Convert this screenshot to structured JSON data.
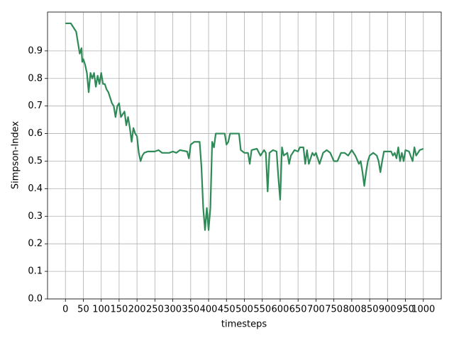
{
  "chart_data": {
    "type": "line",
    "color": "#2e8b57",
    "grid": true,
    "xlabel": "timesteps",
    "ylabel": "Simpson-Index",
    "xlim": [
      -50,
      1050
    ],
    "ylim": [
      0,
      1.041
    ],
    "xticks": [
      0,
      50,
      100,
      150,
      200,
      250,
      300,
      350,
      400,
      450,
      500,
      550,
      600,
      650,
      700,
      750,
      800,
      850,
      900,
      950,
      1000
    ],
    "yticks": [
      {
        "value": 0,
        "label": "0.0"
      },
      0.1,
      0.2,
      0.3,
      0.4,
      0.5,
      0.6,
      0.7,
      0.8,
      0.9
    ],
    "x": [
      0,
      15,
      20,
      25,
      30,
      35,
      40,
      45,
      47,
      50,
      55,
      60,
      65,
      70,
      75,
      80,
      85,
      90,
      95,
      100,
      105,
      110,
      115,
      120,
      125,
      130,
      135,
      140,
      145,
      150,
      155,
      160,
      165,
      170,
      175,
      180,
      185,
      190,
      195,
      200,
      205,
      210,
      215,
      220,
      230,
      250,
      260,
      270,
      290,
      300,
      310,
      320,
      340,
      345,
      350,
      360,
      375,
      380,
      385,
      390,
      395,
      400,
      405,
      410,
      415,
      420,
      445,
      450,
      455,
      460,
      485,
      490,
      500,
      510,
      515,
      520,
      535,
      545,
      555,
      560,
      565,
      570,
      580,
      590,
      595,
      600,
      605,
      610,
      620,
      625,
      630,
      640,
      650,
      655,
      665,
      670,
      675,
      680,
      690,
      695,
      700,
      710,
      720,
      730,
      740,
      750,
      760,
      770,
      780,
      790,
      800,
      810,
      820,
      825,
      830,
      835,
      840,
      845,
      850,
      860,
      870,
      875,
      880,
      885,
      890,
      910,
      915,
      920,
      925,
      930,
      935,
      940,
      945,
      950,
      960,
      970,
      975,
      980,
      990,
      1000
    ],
    "values": [
      1.0,
      1.0,
      0.99,
      0.98,
      0.97,
      0.93,
      0.89,
      0.91,
      0.86,
      0.87,
      0.85,
      0.82,
      0.75,
      0.82,
      0.8,
      0.82,
      0.77,
      0.81,
      0.78,
      0.82,
      0.78,
      0.78,
      0.76,
      0.75,
      0.73,
      0.71,
      0.7,
      0.66,
      0.7,
      0.71,
      0.66,
      0.67,
      0.68,
      0.63,
      0.66,
      0.62,
      0.57,
      0.62,
      0.6,
      0.59,
      0.53,
      0.5,
      0.52,
      0.53,
      0.535,
      0.535,
      0.54,
      0.53,
      0.53,
      0.535,
      0.53,
      0.54,
      0.535,
      0.51,
      0.56,
      0.57,
      0.57,
      0.48,
      0.33,
      0.25,
      0.33,
      0.25,
      0.33,
      0.57,
      0.55,
      0.6,
      0.6,
      0.56,
      0.57,
      0.6,
      0.6,
      0.54,
      0.53,
      0.53,
      0.49,
      0.54,
      0.545,
      0.52,
      0.54,
      0.53,
      0.39,
      0.53,
      0.54,
      0.535,
      0.44,
      0.36,
      0.55,
      0.52,
      0.53,
      0.49,
      0.52,
      0.54,
      0.535,
      0.55,
      0.55,
      0.49,
      0.54,
      0.49,
      0.53,
      0.52,
      0.53,
      0.49,
      0.53,
      0.54,
      0.53,
      0.5,
      0.5,
      0.53,
      0.53,
      0.52,
      0.54,
      0.52,
      0.49,
      0.5,
      0.46,
      0.41,
      0.46,
      0.5,
      0.52,
      0.53,
      0.52,
      0.5,
      0.46,
      0.5,
      0.535,
      0.535,
      0.52,
      0.53,
      0.51,
      0.55,
      0.5,
      0.53,
      0.5,
      0.54,
      0.535,
      0.5,
      0.55,
      0.52,
      0.54,
      0.545
    ]
  }
}
